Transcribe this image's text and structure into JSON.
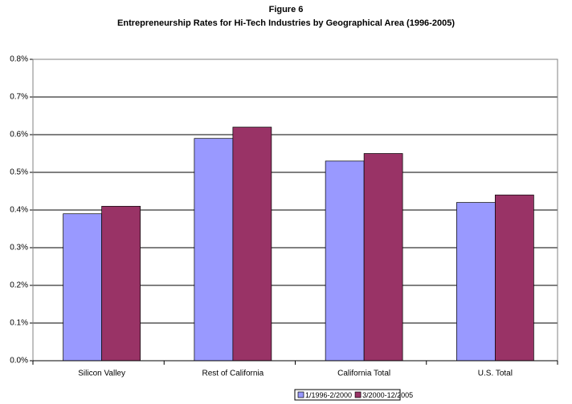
{
  "chart_data": {
    "type": "bar",
    "title": "Figure 6",
    "subtitle": "Entrepreneurship Rates for Hi-Tech Industries by Geographical Area (1996-2005)",
    "categories": [
      "Silicon Valley",
      "Rest of California",
      "California Total",
      "U.S. Total"
    ],
    "series": [
      {
        "name": "1/1996-2/2000",
        "color": "#9999ff",
        "values": [
          0.39,
          0.59,
          0.53,
          0.42
        ]
      },
      {
        "name": "3/2000-12/2005",
        "color": "#993366",
        "values": [
          0.41,
          0.62,
          0.55,
          0.44
        ]
      }
    ],
    "ylim": [
      0,
      0.8
    ],
    "yticks": [
      {
        "value": 0,
        "label": "0.0%"
      },
      {
        "value": 0.1,
        "label": "0.1%"
      },
      {
        "value": 0.2,
        "label": "0.2%"
      },
      {
        "value": 0.3,
        "label": "0.3%"
      },
      {
        "value": 0.4,
        "label": "0.4%"
      },
      {
        "value": 0.5,
        "label": "0.5%"
      },
      {
        "value": 0.6,
        "label": "0.6%"
      },
      {
        "value": 0.7,
        "label": "0.7%"
      },
      {
        "value": 0.8,
        "label": "0.8%"
      }
    ],
    "grid": true,
    "legend": "bottom"
  }
}
